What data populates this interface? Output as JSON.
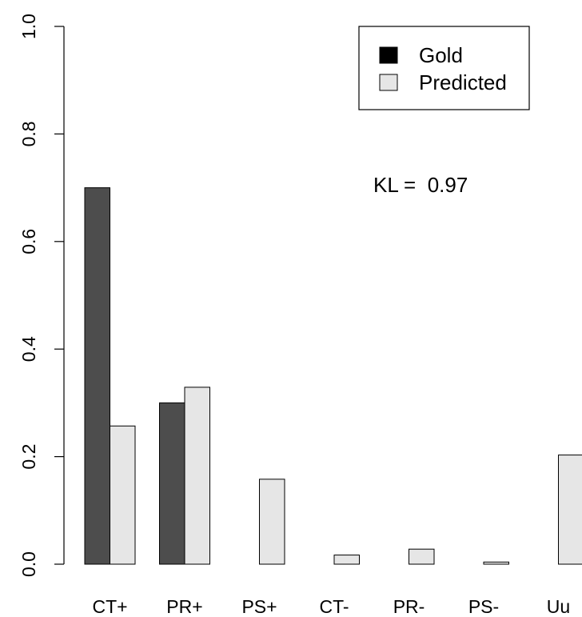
{
  "chart_data": {
    "type": "bar",
    "categories": [
      "CT+",
      "PR+",
      "PS+",
      "CT-",
      "PR-",
      "PS-",
      "Uu"
    ],
    "series": [
      {
        "name": "Gold",
        "values": [
          0.7,
          0.3,
          0.0,
          0.0,
          0.0,
          0.0,
          0.0
        ],
        "color": "#4d4d4d"
      },
      {
        "name": "Predicted",
        "values": [
          0.257,
          0.329,
          0.158,
          0.017,
          0.028,
          0.004,
          0.203
        ],
        "color": "#e6e6e6"
      }
    ],
    "ylim": [
      0,
      1
    ],
    "yticks": [
      "0.0",
      "0.2",
      "0.4",
      "0.6",
      "0.8",
      "1.0"
    ],
    "legend": {
      "position": "top-right"
    },
    "annotation": "KL =  0.97",
    "grid": false
  }
}
